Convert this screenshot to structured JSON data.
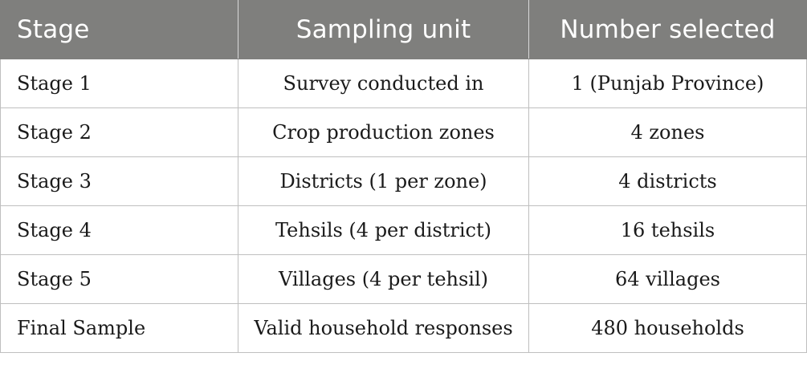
{
  "table": {
    "headers": [
      "Stage",
      "Sampling unit",
      "Number selected"
    ],
    "rows": [
      [
        "Stage 1",
        "Survey conducted in",
        "1 (Punjab Province)"
      ],
      [
        "Stage 2",
        "Crop production zones",
        "4 zones"
      ],
      [
        "Stage 3",
        "Districts (1 per zone)",
        "4 districts"
      ],
      [
        "Stage 4",
        "Tehsils (4 per district)",
        "16 tehsils"
      ],
      [
        "Stage 5",
        "Villages (4 per tehsil)",
        "64 villages"
      ],
      [
        "Final Sample",
        "Valid household responses",
        "480 households"
      ]
    ]
  },
  "colors": {
    "header_background": "#7f7f7d",
    "header_text": "#ffffff",
    "grid_lines": "#bfbfbf"
  }
}
